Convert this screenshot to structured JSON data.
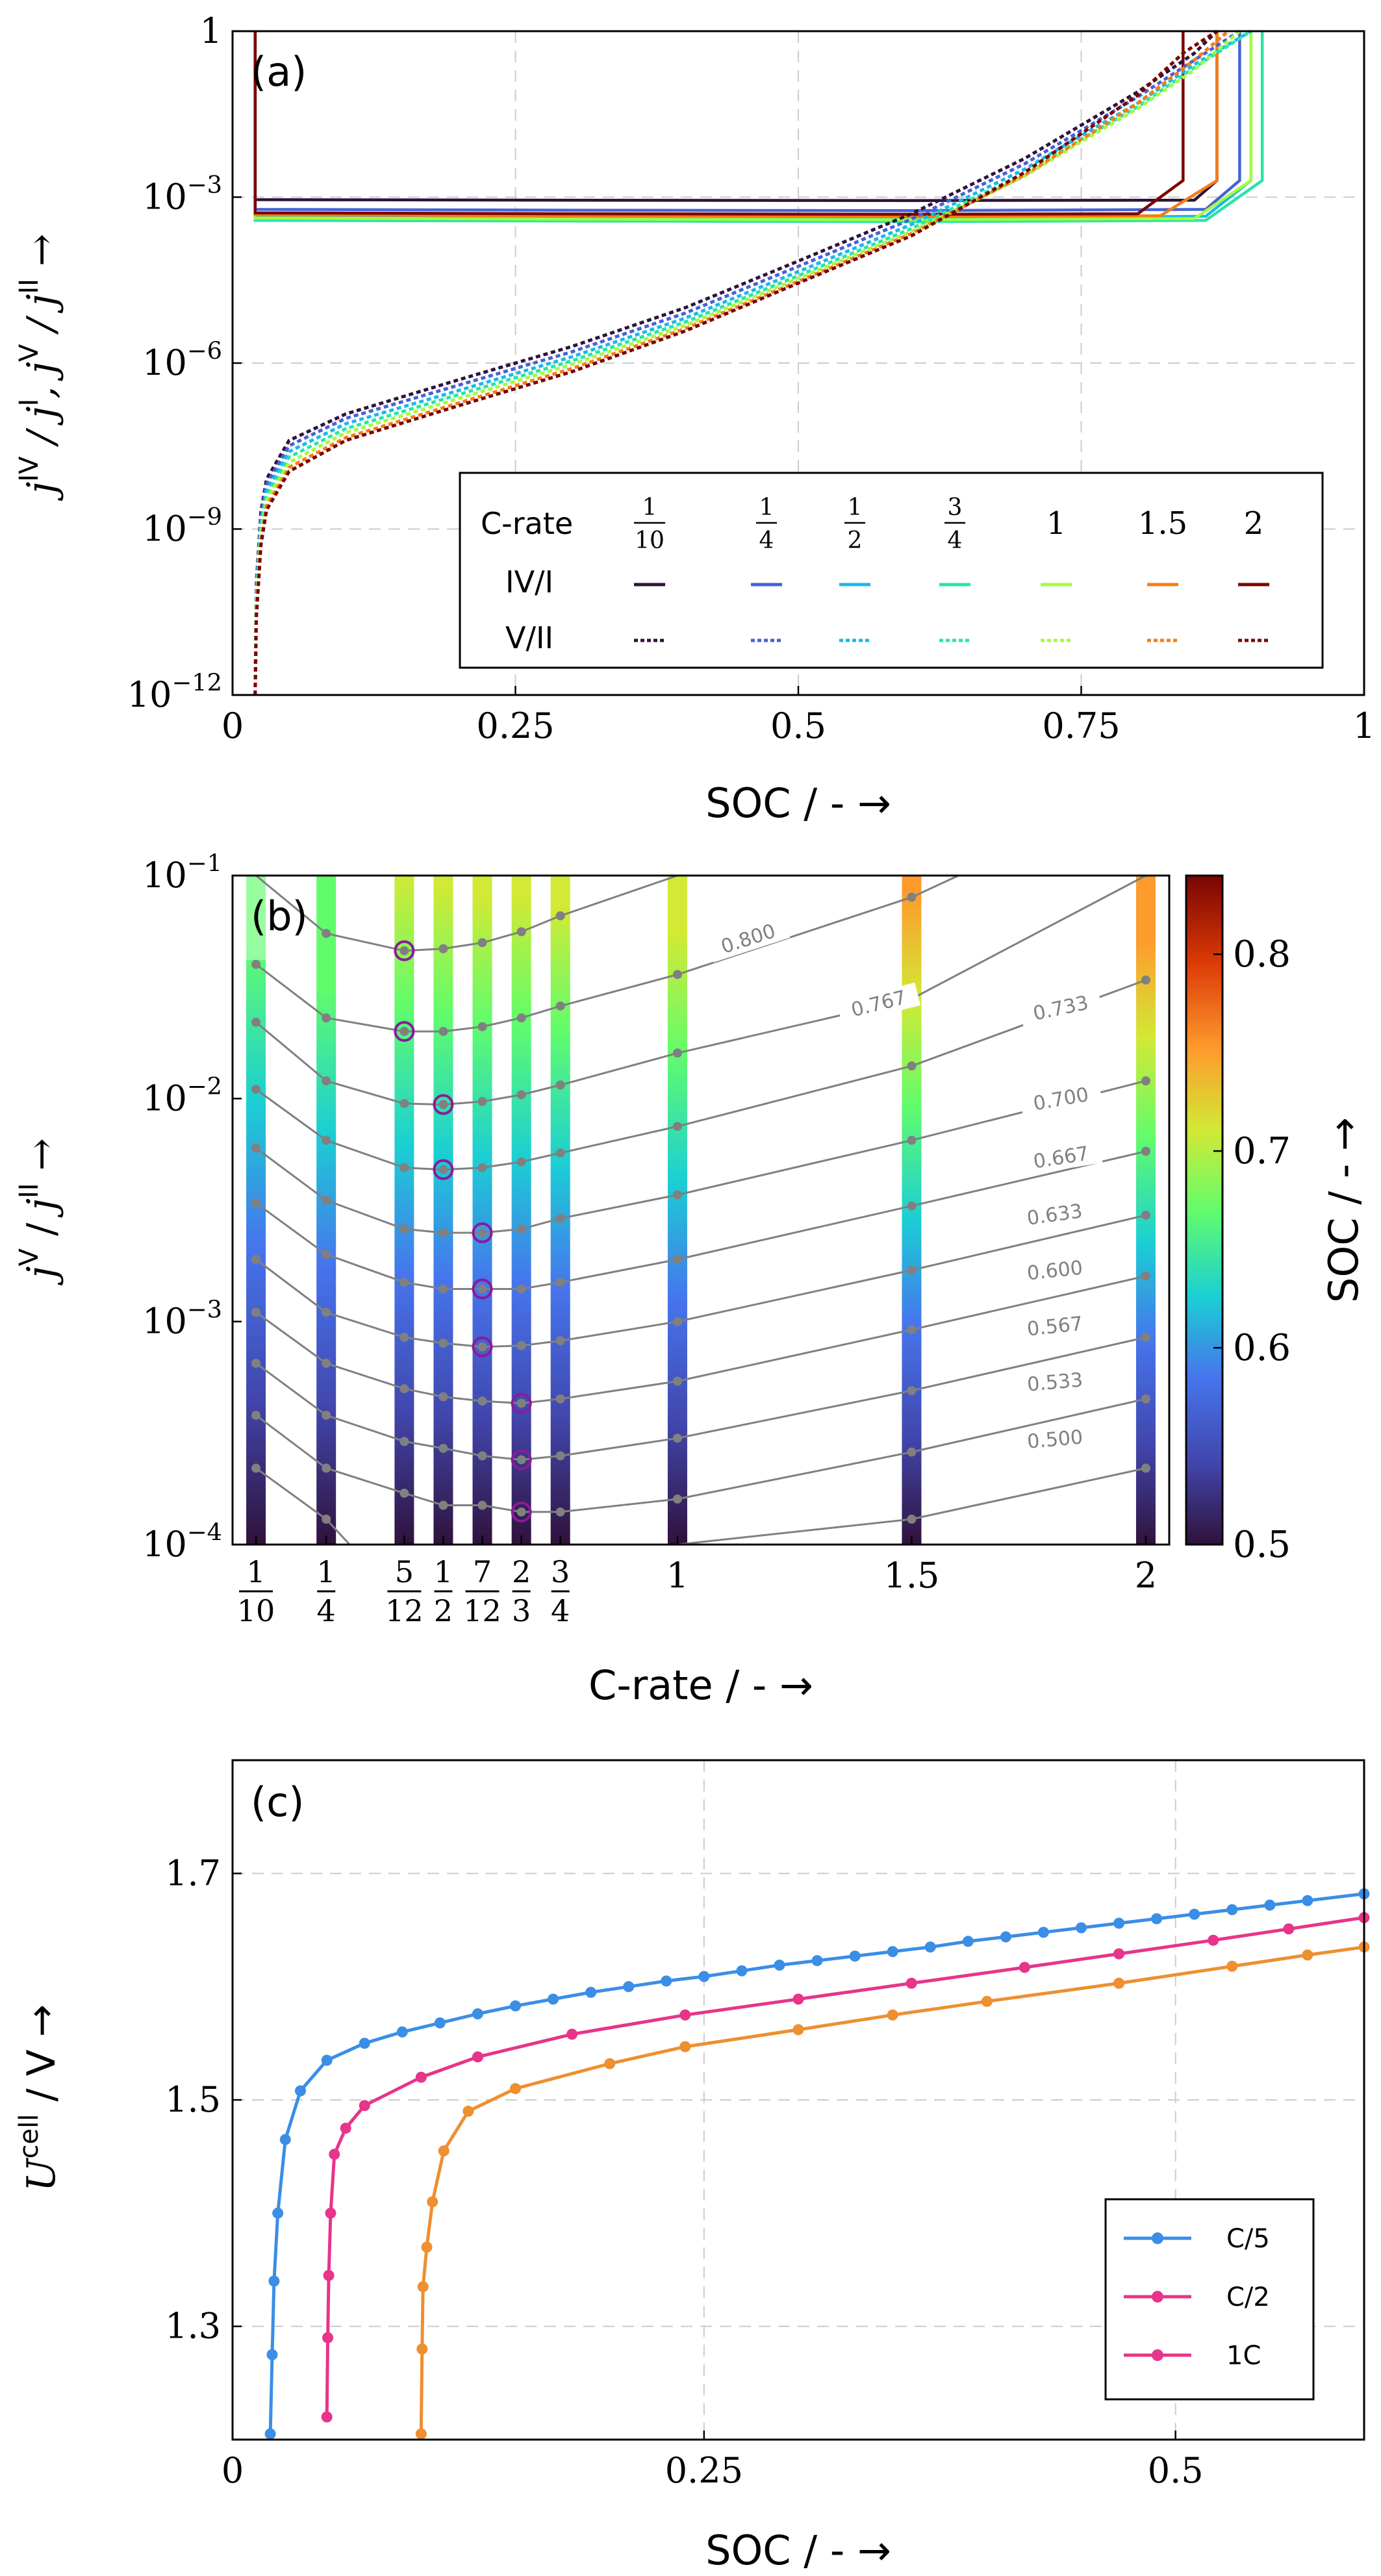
{
  "panels": {
    "a": {
      "label": "(a)",
      "xlabel": "SOC / - →",
      "ylabel": "j^IV / j^I, j^V / j^II →",
      "xticks": [
        "0",
        "0.25",
        "0.5",
        "0.75",
        "1"
      ],
      "yticks": [
        "10⁻¹²",
        "10⁻⁹",
        "10⁻⁶",
        "10⁻³",
        "1"
      ],
      "legend": {
        "header": "C-rate",
        "rates": [
          "1/10",
          "1/4",
          "1/2",
          "3/4",
          "1",
          "1.5",
          "2"
        ],
        "rows": [
          "IV/I",
          "V/II"
        ]
      }
    },
    "b": {
      "label": "(b)",
      "xlabel": "C-rate / - →",
      "ylabel": "j^V / j^II →",
      "yticks": [
        "10⁻⁴",
        "10⁻³",
        "10⁻²",
        "10⁻¹"
      ],
      "xticks": [
        "1/10",
        "1/4",
        "5/12",
        "1/2",
        "7/12",
        "2/3",
        "3/4",
        "1",
        "1.5",
        "2"
      ],
      "colorbar": {
        "label": "SOC / - →",
        "ticks": [
          "0.5",
          "0.6",
          "0.7",
          "0.8"
        ]
      },
      "contour_labels": [
        "0.800",
        "0.767",
        "0.733",
        "0.700",
        "0.667",
        "0.633",
        "0.600",
        "0.567",
        "0.533",
        "0.500"
      ]
    },
    "c": {
      "label": "(c)",
      "xlabel": "SOC / - →",
      "ylabel": "U^cell / V →",
      "xticks": [
        "0",
        "0.25",
        "0.5"
      ],
      "yticks": [
        "1.3",
        "1.5",
        "1.7"
      ],
      "legend": [
        "C/5",
        "C/2",
        "1C"
      ]
    }
  },
  "colors": {
    "rates": [
      "#30123b",
      "#4662d7",
      "#1ab9e8",
      "#27e6a6",
      "#a4fc3c",
      "#f57d15",
      "#7a0403"
    ],
    "c_blue": "#3a8ee6",
    "c_pink": "#e8348a",
    "c_orange": "#ee8f30",
    "marker_ring": "#8b1a9a"
  },
  "chart_data": [
    {
      "type": "line",
      "title": "(a)",
      "xlabel": "SOC / - →",
      "ylabel": "j^IV / j^I, j^V / j^II →",
      "xlim": [
        0,
        1
      ],
      "ylim": [
        1e-12,
        1
      ],
      "yscale": "log",
      "grid": true,
      "legend_position": "bottom-right",
      "series": [
        {
          "name": "IV/I 1/10",
          "style": "solid",
          "x": [
            0.02,
            0.02,
            0.3,
            0.6,
            0.85,
            0.87,
            0.87
          ],
          "y": [
            1,
            0.0009,
            0.00088,
            0.00087,
            0.00088,
            0.002,
            1
          ]
        },
        {
          "name": "IV/I 1/4",
          "style": "solid",
          "x": [
            0.02,
            0.02,
            0.3,
            0.6,
            0.86,
            0.89,
            0.89
          ],
          "y": [
            1,
            0.0006,
            0.00058,
            0.00057,
            0.0006,
            0.002,
            1
          ]
        },
        {
          "name": "IV/I 1/2",
          "style": "solid",
          "x": [
            0.02,
            0.02,
            0.3,
            0.6,
            0.86,
            0.9,
            0.9
          ],
          "y": [
            1,
            0.00045,
            0.00043,
            0.00042,
            0.00045,
            0.002,
            1
          ]
        },
        {
          "name": "IV/I 3/4",
          "style": "solid",
          "x": [
            0.02,
            0.02,
            0.3,
            0.6,
            0.86,
            0.91,
            0.91
          ],
          "y": [
            1,
            0.00038,
            0.00037,
            0.00036,
            0.00038,
            0.002,
            1
          ]
        },
        {
          "name": "IV/I 1",
          "style": "solid",
          "x": [
            0.02,
            0.02,
            0.3,
            0.6,
            0.85,
            0.9,
            0.9
          ],
          "y": [
            1,
            0.00042,
            0.0004,
            0.00039,
            0.00041,
            0.002,
            1
          ]
        },
        {
          "name": "IV/I 1.5",
          "style": "solid",
          "x": [
            0.02,
            0.02,
            0.3,
            0.6,
            0.82,
            0.87,
            0.87
          ],
          "y": [
            1,
            0.00048,
            0.00046,
            0.00045,
            0.00046,
            0.002,
            1
          ]
        },
        {
          "name": "IV/I 2",
          "style": "solid",
          "x": [
            0.02,
            0.02,
            0.3,
            0.6,
            0.8,
            0.84,
            0.84
          ],
          "y": [
            1,
            0.00052,
            0.0005,
            0.00049,
            0.0005,
            0.002,
            1
          ]
        },
        {
          "name": "V/II 1/10",
          "style": "dashed",
          "x": [
            0.02,
            0.021,
            0.025,
            0.03,
            0.05,
            0.1,
            0.2,
            0.3,
            0.4,
            0.5,
            0.6,
            0.7,
            0.75,
            0.8,
            0.85,
            0.87
          ],
          "y": [
            1e-12,
            1e-10,
            2e-09,
            8e-09,
            4e-08,
            1.2e-07,
            5e-07,
            2e-06,
            1e-05,
            7e-05,
            0.0005,
            0.005,
            0.02,
            0.08,
            0.4,
            1
          ]
        },
        {
          "name": "V/II 1/4",
          "style": "dashed",
          "x": [
            0.02,
            0.021,
            0.025,
            0.03,
            0.05,
            0.1,
            0.2,
            0.3,
            0.4,
            0.5,
            0.6,
            0.7,
            0.75,
            0.8,
            0.85,
            0.89
          ],
          "y": [
            1e-12,
            8e-11,
            1.6e-09,
            6.5e-09,
            3.2e-08,
            1e-07,
            4e-07,
            1.6e-06,
            8e-06,
            5.6e-05,
            0.0004,
            0.004,
            0.016,
            0.065,
            0.3,
            1
          ]
        },
        {
          "name": "V/II 1/2",
          "style": "dashed",
          "x": [
            0.02,
            0.021,
            0.025,
            0.03,
            0.05,
            0.1,
            0.2,
            0.3,
            0.4,
            0.5,
            0.6,
            0.7,
            0.75,
            0.8,
            0.85,
            0.9
          ],
          "y": [
            1e-12,
            6e-11,
            1.2e-09,
            5e-09,
            2.5e-08,
            8e-08,
            3.2e-07,
            1.3e-06,
            6.5e-06,
            4.5e-05,
            0.00032,
            0.0032,
            0.013,
            0.05,
            0.25,
            1
          ]
        },
        {
          "name": "V/II 3/4",
          "style": "dashed",
          "x": [
            0.02,
            0.021,
            0.025,
            0.03,
            0.05,
            0.1,
            0.2,
            0.3,
            0.4,
            0.5,
            0.6,
            0.7,
            0.75,
            0.8,
            0.85,
            0.9
          ],
          "y": [
            1e-12,
            5e-11,
            1e-09,
            4e-09,
            2e-08,
            6.5e-08,
            2.7e-07,
            1.1e-06,
            5.5e-06,
            3.8e-05,
            0.00027,
            0.0027,
            0.011,
            0.043,
            0.22,
            1
          ]
        },
        {
          "name": "V/II 1",
          "style": "dashed",
          "x": [
            0.02,
            0.021,
            0.025,
            0.03,
            0.05,
            0.1,
            0.2,
            0.3,
            0.4,
            0.5,
            0.6,
            0.7,
            0.75,
            0.8,
            0.85,
            0.89
          ],
          "y": [
            1e-12,
            4e-11,
            8e-10,
            3.3e-09,
            1.6e-08,
            5.5e-08,
            2.3e-07,
            9.5e-07,
            4.8e-06,
            3.4e-05,
            0.00024,
            0.0024,
            0.01,
            0.04,
            0.2,
            1
          ]
        },
        {
          "name": "V/II 1.5",
          "style": "dashed",
          "x": [
            0.02,
            0.021,
            0.025,
            0.03,
            0.05,
            0.1,
            0.2,
            0.3,
            0.4,
            0.5,
            0.6,
            0.7,
            0.75,
            0.8,
            0.85,
            0.88
          ],
          "y": [
            1e-12,
            3e-11,
            6e-10,
            2.6e-09,
            1.3e-08,
            4.5e-08,
            1.9e-07,
            8e-07,
            4.2e-06,
            3e-05,
            0.00022,
            0.0025,
            0.011,
            0.05,
            0.3,
            1
          ]
        },
        {
          "name": "V/II 2",
          "style": "dashed",
          "x": [
            0.02,
            0.021,
            0.025,
            0.03,
            0.05,
            0.1,
            0.2,
            0.3,
            0.4,
            0.5,
            0.6,
            0.7,
            0.75,
            0.8,
            0.84,
            0.87
          ],
          "y": [
            1e-12,
            2.5e-11,
            5e-10,
            2.2e-09,
            1.1e-08,
            4e-08,
            1.7e-07,
            7e-07,
            3.8e-06,
            2.8e-05,
            0.0002,
            0.0028,
            0.014,
            0.07,
            0.4,
            1
          ]
        }
      ]
    },
    {
      "type": "heatmap",
      "title": "(b)",
      "xlabel": "C-rate / - →",
      "ylabel": "j^V / j^II →",
      "yscale": "log",
      "ylim": [
        0.0001,
        0.1
      ],
      "xlim": [
        0.05,
        2.05
      ],
      "colorbar_range": [
        0.5,
        0.84
      ],
      "colorbar_label": "SOC / - →",
      "columns_x": [
        0.1,
        0.25,
        0.4167,
        0.5,
        0.5833,
        0.6667,
        0.75,
        1,
        1.5,
        2
      ],
      "contours": [
        {
          "soc": 0.833,
          "x": [
            0.1,
            0.25,
            0.4167,
            0.5,
            0.5833,
            0.6667,
            0.75,
            1,
            1.3
          ],
          "y": [
            0.1,
            0.055,
            0.046,
            0.047,
            0.05,
            0.056,
            0.066,
            0.1,
            0.2
          ]
        },
        {
          "soc": 0.8,
          "x": [
            0.1,
            0.25,
            0.4167,
            0.5,
            0.5833,
            0.6667,
            0.75,
            1,
            1.5,
            1.6
          ],
          "y": [
            0.04,
            0.023,
            0.02,
            0.02,
            0.021,
            0.023,
            0.026,
            0.036,
            0.08,
            0.1
          ]
        },
        {
          "soc": 0.767,
          "x": [
            0.1,
            0.25,
            0.4167,
            0.5,
            0.5833,
            0.6667,
            0.75,
            1,
            1.5,
            2
          ],
          "y": [
            0.022,
            0.012,
            0.0095,
            0.0094,
            0.0097,
            0.0104,
            0.0115,
            0.016,
            0.028,
            0.1
          ]
        },
        {
          "soc": 0.733,
          "x": [
            0.1,
            0.25,
            0.4167,
            0.5,
            0.5833,
            0.6667,
            0.75,
            1,
            1.5,
            2
          ],
          "y": [
            0.011,
            0.0065,
            0.0049,
            0.0048,
            0.0049,
            0.0052,
            0.0057,
            0.0075,
            0.014,
            0.034
          ]
        },
        {
          "soc": 0.7,
          "x": [
            0.1,
            0.25,
            0.4167,
            0.5,
            0.5833,
            0.6667,
            0.75,
            1,
            1.5,
            2
          ],
          "y": [
            0.006,
            0.0035,
            0.0026,
            0.0025,
            0.0025,
            0.0026,
            0.0029,
            0.0037,
            0.0065,
            0.012
          ]
        },
        {
          "soc": 0.667,
          "x": [
            0.1,
            0.25,
            0.4167,
            0.5,
            0.5833,
            0.6667,
            0.75,
            1,
            1.5,
            2
          ],
          "y": [
            0.0034,
            0.002,
            0.0015,
            0.0014,
            0.0014,
            0.0014,
            0.0015,
            0.0019,
            0.0033,
            0.0058
          ]
        },
        {
          "soc": 0.633,
          "x": [
            0.1,
            0.25,
            0.4167,
            0.5,
            0.5833,
            0.6667,
            0.75,
            1,
            1.5,
            2
          ],
          "y": [
            0.0019,
            0.0011,
            0.00085,
            0.0008,
            0.00077,
            0.00078,
            0.00082,
            0.001,
            0.0017,
            0.003
          ]
        },
        {
          "soc": 0.6,
          "x": [
            0.1,
            0.25,
            0.4167,
            0.5,
            0.5833,
            0.6667,
            0.75,
            1,
            1.5,
            2
          ],
          "y": [
            0.0011,
            0.00065,
            0.0005,
            0.00046,
            0.00044,
            0.00043,
            0.00045,
            0.00054,
            0.00092,
            0.0016
          ]
        },
        {
          "soc": 0.567,
          "x": [
            0.1,
            0.25,
            0.4167,
            0.5,
            0.5833,
            0.6667,
            0.75,
            1,
            1.5,
            2
          ],
          "y": [
            0.00065,
            0.00038,
            0.00029,
            0.00027,
            0.00025,
            0.00024,
            0.00025,
            0.0003,
            0.00049,
            0.00085
          ]
        },
        {
          "soc": 0.533,
          "x": [
            0.1,
            0.25,
            0.4167,
            0.5,
            0.5833,
            0.6667,
            0.75,
            1,
            1.5,
            2
          ],
          "y": [
            0.00038,
            0.00022,
            0.00017,
            0.00015,
            0.00015,
            0.00014,
            0.00014,
            0.00016,
            0.00026,
            0.00045
          ]
        },
        {
          "soc": 0.5,
          "x": [
            0.1,
            0.25,
            0.3,
            1,
            1.5,
            2
          ],
          "y": [
            0.00022,
            0.00013,
            0.0001,
            0.0001,
            0.00013,
            0.00022
          ]
        }
      ],
      "highlighted_minima": {
        "x": [
          0.4167,
          0.4167,
          0.5,
          0.5,
          0.5833,
          0.5833,
          0.5833,
          0.6667,
          0.6667,
          0.6667
        ],
        "y": [
          0.046,
          0.02,
          0.0094,
          0.0048,
          0.0025,
          0.0014,
          0.00077,
          0.00043,
          0.00024,
          0.00014
        ]
      }
    },
    {
      "type": "line",
      "title": "(c)",
      "xlabel": "SOC / - →",
      "ylabel": "U^cell / V →",
      "xlim": [
        0,
        0.6
      ],
      "ylim": [
        1.2,
        1.8
      ],
      "grid": true,
      "legend_position": "bottom-right",
      "series": [
        {
          "name": "C/5",
          "x": [
            0.02,
            0.021,
            0.022,
            0.024,
            0.028,
            0.036,
            0.05,
            0.07,
            0.09,
            0.11,
            0.13,
            0.15,
            0.17,
            0.19,
            0.21,
            0.23,
            0.25,
            0.27,
            0.29,
            0.31,
            0.33,
            0.35,
            0.37,
            0.39,
            0.41,
            0.43,
            0.45,
            0.47,
            0.49,
            0.51,
            0.53,
            0.55,
            0.57,
            0.6
          ],
          "y": [
            1.205,
            1.275,
            1.34,
            1.4,
            1.465,
            1.508,
            1.535,
            1.55,
            1.56,
            1.568,
            1.576,
            1.583,
            1.589,
            1.595,
            1.6,
            1.605,
            1.609,
            1.614,
            1.619,
            1.623,
            1.627,
            1.631,
            1.635,
            1.64,
            1.644,
            1.648,
            1.652,
            1.656,
            1.66,
            1.664,
            1.668,
            1.672,
            1.676,
            1.682
          ]
        },
        {
          "name": "C/2",
          "x": [
            0.05,
            0.0505,
            0.051,
            0.052,
            0.054,
            0.06,
            0.07,
            0.1,
            0.13,
            0.18,
            0.24,
            0.3,
            0.36,
            0.42,
            0.47,
            0.52,
            0.56,
            0.6
          ],
          "y": [
            1.22,
            1.29,
            1.345,
            1.4,
            1.452,
            1.475,
            1.495,
            1.52,
            1.538,
            1.558,
            1.575,
            1.589,
            1.603,
            1.617,
            1.629,
            1.641,
            1.651,
            1.661
          ]
        },
        {
          "name": "1C",
          "x": [
            0.1,
            0.1005,
            0.101,
            0.103,
            0.106,
            0.112,
            0.125,
            0.15,
            0.2,
            0.24,
            0.3,
            0.35,
            0.4,
            0.47,
            0.53,
            0.57,
            0.6
          ],
          "y": [
            1.205,
            1.28,
            1.335,
            1.37,
            1.41,
            1.455,
            1.49,
            1.51,
            1.532,
            1.547,
            1.562,
            1.575,
            1.587,
            1.603,
            1.618,
            1.628,
            1.635
          ]
        }
      ]
    }
  ]
}
